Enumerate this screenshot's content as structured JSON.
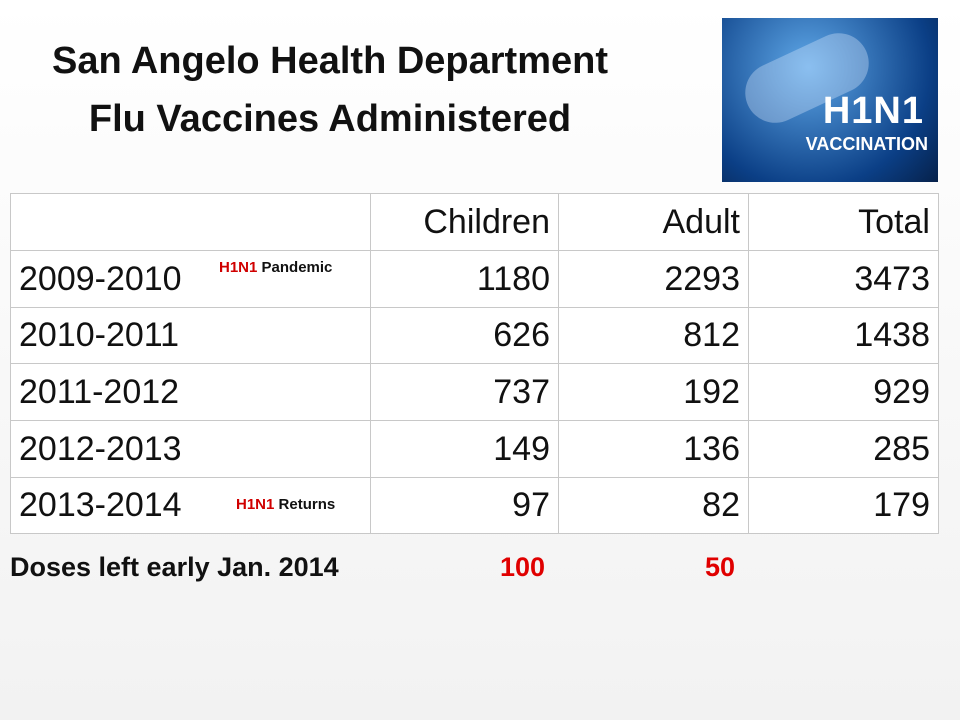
{
  "title": [
    "San Angelo Health Department",
    "Flu Vaccines Administered"
  ],
  "image": {
    "lines": [
      "H1N1",
      "VACCINATION"
    ]
  },
  "table": {
    "columns": [
      "Children",
      "Adult",
      "Total"
    ],
    "rows": [
      {
        "season": "2009-2010",
        "note": [
          "H1N1",
          "Pandemic"
        ],
        "values": [
          1180,
          2293,
          3473
        ]
      },
      {
        "season": "2010-2011",
        "values": [
          626,
          812,
          1438
        ]
      },
      {
        "season": "2011-2012",
        "values": [
          737,
          192,
          929
        ]
      },
      {
        "season": "2012-2013",
        "values": [
          149,
          136,
          285
        ]
      },
      {
        "season": "2013-2014",
        "note": [
          "H1N1",
          "Returns"
        ],
        "values": [
          97,
          82,
          179
        ]
      }
    ]
  },
  "footer": {
    "label": "Doses left early Jan. 2014",
    "values": [
      100,
      50
    ]
  }
}
